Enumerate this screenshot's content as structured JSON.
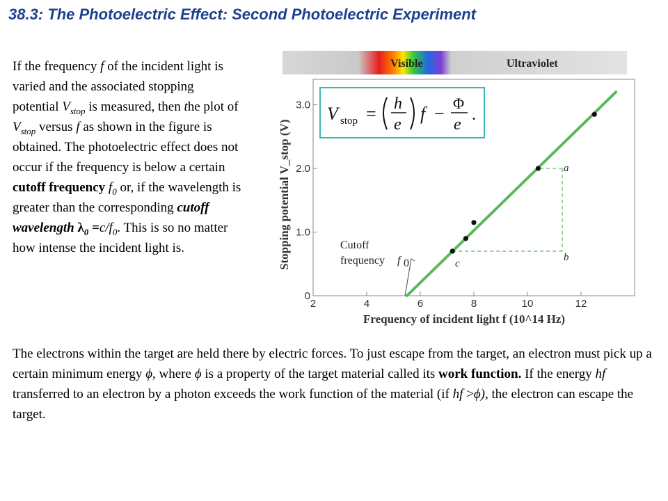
{
  "title": "38.3: The Photoelectric Effect: Second Photoelectric Experiment",
  "left_paragraph": {
    "p1": "If the frequency ",
    "f1": "f",
    "p2": " of the incident light is varied and the associated stopping potential ",
    "vstop1_v": "V",
    "vstop1_sub": "stop",
    "p3": " is measured, then ",
    "p3b": "t",
    "p3c": "he plot of ",
    "vstop2_v": "V",
    "vstop2_sub": "stop",
    "p4": " versus ",
    "f2": "f",
    "p5": " as shown in the figure is obtained. The photoelectric effect does not occur if the frequency is below a certain ",
    "cutoff_freq": "cutoff frequency",
    "p6": " ",
    "f0_f": "f",
    "f0_sub": "0",
    "p7": " or, if the wavelength is greater than the corresponding ",
    "cutoff_wl": "cutoff wavelength",
    "p8": " ",
    "lambda0": "λ",
    "lambda0_sub": "0",
    "eq": " =",
    "c_over": "c/f",
    "c_sub": "0",
    "p9": ". This is so no matter how intense the incident light is."
  },
  "bottom_paragraph": {
    "p1": "The electrons within the target are held there by electric forces. To just escape from the target, an electron must pick up a certain minimum energy ",
    "phi1": "ϕ",
    "p2": ", where ",
    "phi2": "ϕ",
    "p3": " is a property of the target material called its ",
    "work_function": "work function.",
    "p4": " If the energy ",
    "hf1": "hf",
    "p5": " transferred to an electron by a photon exceeds the work function of the material (if ",
    "hf2": "hf",
    "p6": " >",
    "phi3": "ϕ",
    "p7": "), ",
    "p8": " the electron can escape the target."
  },
  "figure": {
    "band_visible": "Visible",
    "band_uv": "Ultraviolet",
    "equation": {
      "lhs_v": "V",
      "lhs_sub": "stop",
      "equals": "=",
      "h": "h",
      "e1": "e",
      "f": "f",
      "minus": "−",
      "phi": "Φ",
      "e2": "e",
      "period": "."
    },
    "cutoff_label_line1": "Cutoff",
    "cutoff_label_line2": "frequency",
    "cutoff_f0_f": "f",
    "cutoff_f0_sub": "0",
    "point_label_a": "a",
    "point_label_b": "b",
    "point_label_c": "c",
    "colors": {
      "line": "#5cb85c",
      "dashes": "#5cb85c",
      "axes": "#777777",
      "equation_border": "#3fb6b6",
      "title": "#1f3f8f"
    }
  },
  "chart_data": {
    "type": "scatter",
    "xlabel": "Frequency of incident light f (10^14 Hz)",
    "ylabel": "Stopping potential V_stop (V)",
    "xlim": [
      2,
      14
    ],
    "ylim": [
      0,
      3.4
    ],
    "x_ticks": [
      2,
      4,
      6,
      8,
      10,
      12
    ],
    "y_ticks": [
      0,
      1.0,
      2.0,
      3.0
    ],
    "x_tick_labels": [
      "2",
      "4",
      "6",
      "8",
      "10",
      "12"
    ],
    "y_tick_labels": [
      "0",
      "1.0",
      "2.0",
      "3.0"
    ],
    "points": [
      {
        "x": 7.2,
        "y": 0.7
      },
      {
        "x": 7.7,
        "y": 0.9
      },
      {
        "x": 8.0,
        "y": 1.15
      },
      {
        "x": 10.4,
        "y": 2.0
      },
      {
        "x": 12.5,
        "y": 2.85
      }
    ],
    "fit_line": [
      [
        5.5,
        0.0
      ],
      [
        13.3,
        3.2
      ]
    ],
    "guide_a": {
      "x": 11.3,
      "y": 2.0
    },
    "guide_b": {
      "x": 11.3,
      "y": 0.7
    },
    "cutoff_x": 5.5
  }
}
